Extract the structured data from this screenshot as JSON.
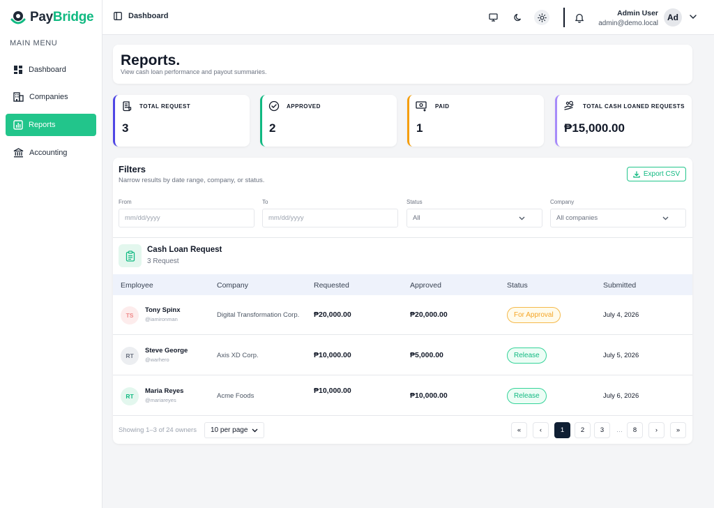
{
  "brand": {
    "name_part1": "Pay",
    "name_part2": "Bridge",
    "accent": "#10b981"
  },
  "sidebar": {
    "menu_title": "MAIN MENU",
    "items": [
      {
        "label": "Dashboard",
        "icon": "dashboard-icon",
        "active": false
      },
      {
        "label": "Companies",
        "icon": "building-icon",
        "active": false
      },
      {
        "label": "Reports",
        "icon": "chart-icon",
        "active": true
      },
      {
        "label": "Accounting",
        "icon": "bank-icon",
        "active": false
      }
    ]
  },
  "topbar": {
    "breadcrumb": "Dashboard",
    "user": {
      "name": "Admin User",
      "email": "admin@demo.local",
      "initials": "Ad"
    }
  },
  "page": {
    "title": "Reports.",
    "subtitle": "View cash loan performance and payout summaries."
  },
  "stats": [
    {
      "label": "TOTAL REQUEST",
      "value": "3",
      "color": "#4f46e5",
      "icon": "request-icon"
    },
    {
      "label": "APPROVED",
      "value": "2",
      "color": "#10b981",
      "icon": "check-circle-icon"
    },
    {
      "label": "PAID",
      "value": "1",
      "color": "#f59e0b",
      "icon": "cash-icon"
    },
    {
      "label": "TOTAL CASH LOANED REQUESTS",
      "value": "₱15,000.00",
      "color": "#a78bfa",
      "icon": "hand-coins-icon"
    }
  ],
  "filters": {
    "title": "Filters",
    "subtitle": "Narrow results by date range, company, or status.",
    "export_label": "Export CSV",
    "from_label": "From",
    "from_placeholder": "mm/dd/yyyy",
    "to_label": "To",
    "to_placeholder": "mm/dd/yyyy",
    "status_label": "Status",
    "status_value": "All",
    "company_label": "Company",
    "company_value": "All companies"
  },
  "table": {
    "title": "Cash Loan Request",
    "subtitle": "3 Request",
    "columns": [
      "Employee",
      "Company",
      "Requested",
      "Approved",
      "Status",
      "Submitted"
    ],
    "rows": [
      {
        "initials": "TS",
        "name": "Tony Spinx",
        "handle": "@iamironman",
        "company": "Digital Transformation Corp.",
        "requested": "₱20,000.00",
        "approved": "₱20,000.00",
        "status": "For Approval",
        "submitted": "July 4, 2026"
      },
      {
        "initials": "RT",
        "name": "Steve George",
        "handle": "@warhero",
        "company": "Axis XD Corp.",
        "requested": "₱10,000.00",
        "approved": "₱5,000.00",
        "status": "Release",
        "submitted": "July 5, 2026"
      },
      {
        "initials": "RT",
        "name": "Maria Reyes",
        "handle": "@mariareyes",
        "company": "Acme Foods",
        "requested": "₱10,000.00",
        "approved": "₱10,000.00",
        "status": "Release",
        "submitted": "July 6, 2026"
      }
    ]
  },
  "pagination": {
    "showing": "Showing 1–3 of 24 owners",
    "per_page": "10 per page",
    "first": "«",
    "prev": "‹",
    "pages": [
      "1",
      "2",
      "3",
      "…",
      "8"
    ],
    "next": "›",
    "last": "»",
    "current": "1"
  }
}
